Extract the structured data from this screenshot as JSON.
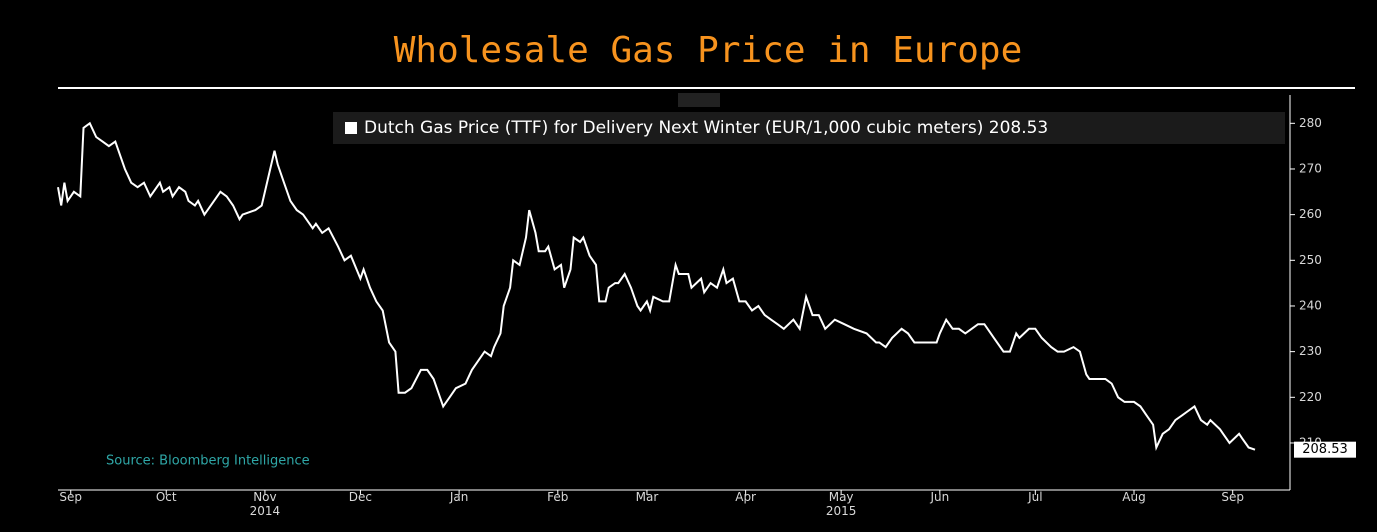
{
  "chart_data": {
    "type": "line",
    "title": "Wholesale Gas Price in Europe",
    "annotation": "Source: Bloomberg Intelligence",
    "series": [
      {
        "name": "Dutch Gas Price (TTF) for Delivery Next Winter (EUR/1,000 cubic meters)",
        "color": "#ffffff",
        "x": [
          -4,
          -3,
          -2,
          -1,
          1,
          3,
          4,
          6,
          8,
          10,
          12,
          14,
          15,
          17,
          19,
          21,
          23,
          25,
          26,
          28,
          29,
          31,
          32,
          34,
          36,
          37,
          39,
          40,
          42,
          43,
          45,
          47,
          49,
          51,
          53,
          54,
          58,
          60,
          62,
          64,
          65,
          67,
          69,
          71,
          73,
          76,
          77,
          79,
          81,
          84,
          86,
          88,
          91,
          92,
          94,
          96,
          98,
          100,
          102,
          103,
          105,
          107,
          110,
          112,
          114,
          116,
          117,
          119,
          121,
          124,
          126,
          128,
          130,
          132,
          133,
          135,
          136,
          138,
          139,
          141,
          143,
          144,
          146,
          147,
          149,
          150,
          152,
          154,
          155,
          157,
          158,
          160,
          161,
          163,
          165,
          166,
          168,
          169,
          171,
          172,
          174,
          176,
          178,
          179,
          181,
          182,
          183,
          186,
          188,
          190,
          191,
          194,
          195,
          198,
          199,
          201,
          203,
          205,
          206,
          208,
          210,
          212,
          214,
          216,
          218,
          220,
          222,
          224,
          227,
          229,
          231,
          233,
          235,
          237,
          240,
          243,
          246,
          250,
          253,
          254,
          256,
          258,
          261,
          263,
          265,
          267,
          269,
          272,
          273,
          275,
          277,
          279,
          281,
          283,
          285,
          287,
          289,
          290,
          293,
          295,
          297,
          298,
          301,
          303,
          305,
          308,
          310,
          312,
          315,
          317,
          319,
          320,
          323,
          325,
          327,
          329,
          331,
          334,
          336,
          338,
          340,
          341,
          343,
          345,
          347,
          349,
          351,
          353,
          355,
          357,
          358,
          361,
          362,
          364,
          367,
          368,
          370,
          372
        ],
        "values": [
          266,
          262,
          267,
          263,
          265,
          264,
          279,
          280,
          277,
          276,
          275,
          276,
          274,
          270,
          267,
          266,
          267,
          264,
          265,
          267,
          265,
          266,
          264,
          266,
          265,
          263,
          262,
          263,
          260,
          261,
          263,
          265,
          264,
          262,
          259,
          260,
          261,
          262,
          268,
          274,
          271,
          267,
          263,
          261,
          260,
          257,
          258,
          256,
          257,
          253,
          250,
          251,
          246,
          248,
          244,
          241,
          239,
          232,
          230,
          221,
          221,
          222,
          226,
          226,
          224,
          220,
          218,
          220,
          222,
          223,
          226,
          228,
          230,
          229,
          231,
          234,
          240,
          244,
          250,
          249,
          255,
          261,
          256,
          252,
          252,
          253,
          248,
          249,
          244,
          248,
          255,
          254,
          255,
          251,
          249,
          241,
          241,
          244,
          245,
          245,
          247,
          244,
          240,
          239,
          241,
          239,
          242,
          241,
          241,
          249,
          247,
          247,
          244,
          246,
          243,
          245,
          244,
          248,
          245,
          246,
          241,
          241,
          239,
          240,
          238,
          237,
          236,
          235,
          237,
          235,
          242,
          238,
          238,
          235,
          237,
          236,
          235,
          234,
          232,
          232,
          231,
          233,
          235,
          234,
          232,
          232,
          232,
          232,
          234,
          237,
          235,
          235,
          234,
          235,
          236,
          236,
          234,
          233,
          230,
          230,
          234,
          233,
          235,
          235,
          233,
          231,
          230,
          230,
          231,
          230,
          225,
          224,
          224,
          224,
          223,
          220,
          219,
          219,
          218,
          216,
          214,
          209,
          212,
          213,
          215,
          216,
          217,
          218,
          215,
          214,
          215,
          213,
          212,
          210,
          212,
          211,
          209,
          208.53
        ]
      }
    ],
    "xlim": [
      -4,
      383
    ],
    "xticks": [
      {
        "value": 0,
        "label": "Sep"
      },
      {
        "value": 30,
        "label": "Oct"
      },
      {
        "value": 61,
        "label": "Nov"
      },
      {
        "value": 91,
        "label": "Dec"
      },
      {
        "value": 122,
        "label": "Jan"
      },
      {
        "value": 153,
        "label": "Feb"
      },
      {
        "value": 181,
        "label": "Mar"
      },
      {
        "value": 212,
        "label": "Apr"
      },
      {
        "value": 242,
        "label": "May"
      },
      {
        "value": 273,
        "label": "Jun"
      },
      {
        "value": 303,
        "label": "Jul"
      },
      {
        "value": 334,
        "label": "Aug"
      },
      {
        "value": 365,
        "label": "Sep"
      }
    ],
    "year_labels": [
      {
        "value": 61,
        "label": "2014"
      },
      {
        "value": 242,
        "label": "2015"
      }
    ],
    "ylim": [
      199.7,
      286.2
    ],
    "yticks": [
      210,
      220,
      230,
      240,
      250,
      260,
      270,
      280
    ],
    "y_axis_side": "right"
  }
}
